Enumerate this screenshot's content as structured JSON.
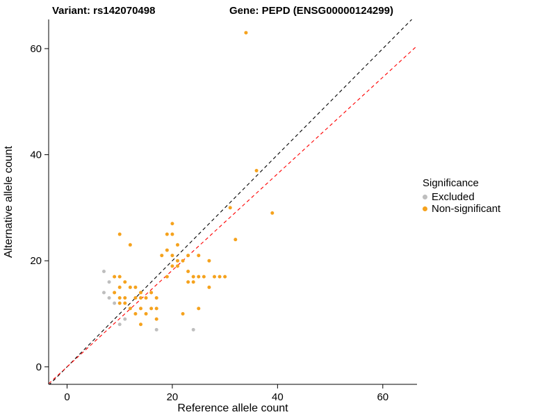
{
  "titles": {
    "variant": "Variant: rs142070498",
    "gene": "Gene: PEPD (ENSG00000124299)"
  },
  "chart_data": {
    "type": "scatter",
    "title": "Variant: rs142070498 / Gene: PEPD (ENSG00000124299)",
    "xlabel": "Reference allele count",
    "ylabel": "Alternative allele count",
    "xlim": [
      -3.5,
      66.5
    ],
    "ylim": [
      -3.3,
      65.5
    ],
    "xticks": [
      0,
      20,
      40,
      60
    ],
    "yticks": [
      0,
      20,
      40,
      60
    ],
    "grid": false,
    "legend": {
      "title": "Significance",
      "position": "right",
      "entries": [
        {
          "label": "Excluded",
          "color": "#BEBEBE"
        },
        {
          "label": "Non-significant",
          "color": "#F5A21D"
        }
      ]
    },
    "lines": [
      {
        "name": "identity-line",
        "slope": 1,
        "intercept": 0,
        "color": "#000000",
        "style": "dashed"
      },
      {
        "name": "expected-ratio-line",
        "slope": 0.91,
        "intercept": 0,
        "color": "#FF0000",
        "style": "dashed"
      }
    ],
    "series": [
      {
        "name": "Excluded",
        "color": "#BEBEBE",
        "points": [
          [
            7,
            18
          ],
          [
            8,
            16
          ],
          [
            7,
            14
          ],
          [
            8,
            13
          ],
          [
            9,
            12
          ],
          [
            10,
            8
          ],
          [
            11,
            9
          ],
          [
            17,
            7
          ],
          [
            24,
            7
          ]
        ]
      },
      {
        "name": "Non-significant",
        "color": "#F5A21D",
        "points": [
          [
            34,
            63
          ],
          [
            36,
            37
          ],
          [
            39,
            29
          ],
          [
            31,
            30
          ],
          [
            32,
            24
          ],
          [
            30,
            17
          ],
          [
            28,
            17
          ],
          [
            20,
            27
          ],
          [
            19,
            25
          ],
          [
            20,
            25
          ],
          [
            21,
            23
          ],
          [
            19,
            22
          ],
          [
            18,
            21
          ],
          [
            20,
            21
          ],
          [
            21,
            20
          ],
          [
            22,
            20
          ],
          [
            23,
            21
          ],
          [
            25,
            21
          ],
          [
            27,
            20
          ],
          [
            20,
            19
          ],
          [
            21,
            19
          ],
          [
            23,
            18
          ],
          [
            24,
            17
          ],
          [
            25,
            17
          ],
          [
            26,
            17
          ],
          [
            29,
            17
          ],
          [
            23,
            16
          ],
          [
            24,
            16
          ],
          [
            27,
            15
          ],
          [
            19,
            17
          ],
          [
            10,
            25
          ],
          [
            12,
            23
          ],
          [
            9,
            17
          ],
          [
            10,
            17
          ],
          [
            11,
            16
          ],
          [
            10,
            15
          ],
          [
            12,
            15
          ],
          [
            13,
            15
          ],
          [
            14,
            14
          ],
          [
            9,
            14
          ],
          [
            10,
            13
          ],
          [
            11,
            13
          ],
          [
            13,
            13
          ],
          [
            14,
            13
          ],
          [
            15,
            13
          ],
          [
            16,
            14
          ],
          [
            17,
            13
          ],
          [
            10,
            12
          ],
          [
            11,
            12
          ],
          [
            12,
            11
          ],
          [
            14,
            11
          ],
          [
            16,
            11
          ],
          [
            17,
            11
          ],
          [
            13,
            10
          ],
          [
            15,
            10
          ],
          [
            22,
            10
          ],
          [
            25,
            11
          ],
          [
            17,
            9
          ],
          [
            14,
            8
          ]
        ]
      }
    ]
  }
}
